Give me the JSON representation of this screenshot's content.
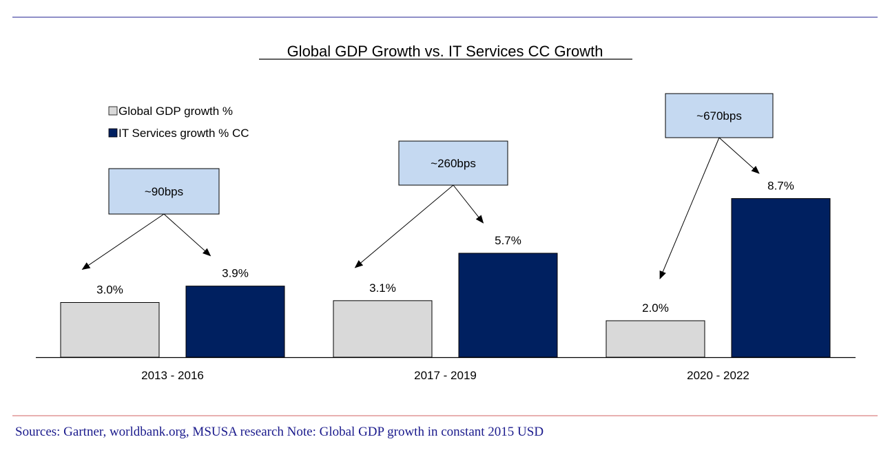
{
  "chart_data": {
    "type": "bar",
    "title": "Global GDP Growth vs. IT Services CC Growth",
    "xlabel": "",
    "ylabel": "",
    "ylim": [
      0,
      10
    ],
    "grid": false,
    "legend_position": "top-left",
    "categories": [
      "2013 - 2016",
      "2017 - 2019",
      "2020 - 2022"
    ],
    "series": [
      {
        "name": "Global GDP growth %",
        "color": "#d9d9d9",
        "values": [
          3.0,
          3.1,
          2.0
        ],
        "labels": [
          "3.0%",
          "3.1%",
          "2.0%"
        ]
      },
      {
        "name": "IT Services growth % CC",
        "color": "#002060",
        "values": [
          3.9,
          5.7,
          8.7
        ],
        "labels": [
          "3.9%",
          "5.7%",
          "8.7%"
        ]
      }
    ],
    "annotations": [
      "~90bps",
      "~260bps",
      "~670bps"
    ]
  },
  "footer": {
    "source": "Sources: Gartner, worldbank.org, MSUSA research Note: Global GDP growth in constant 2015 USD"
  },
  "colors": {
    "top_rule": "#1f1f8f",
    "bottom_rule": "#d06060",
    "annotation_fill": "#c5d9f1",
    "source_text": "#1a1a8c"
  }
}
